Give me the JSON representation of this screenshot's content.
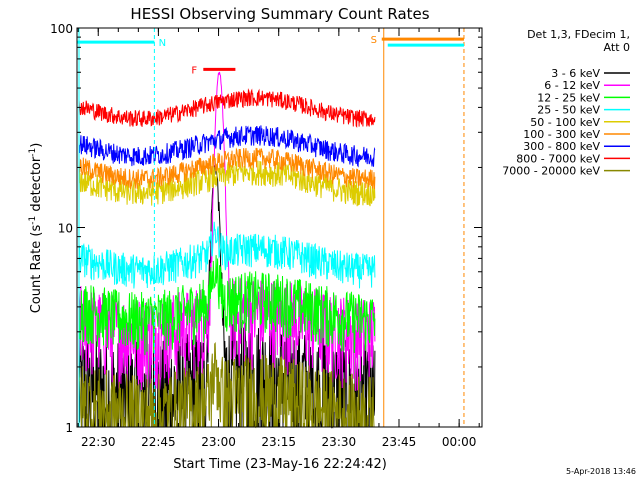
{
  "chart_data": {
    "type": "line",
    "title": "HESSI Observing Summary Count Rates",
    "xlabel": "Start Time (23-May-16 22:24:42)",
    "ylabel_main": "Count Rate (s",
    "ylabel_sup1": "-1",
    "ylabel_mid": " detector",
    "ylabel_sup2": "-1",
    "ylabel_end": ")",
    "yscale": "log",
    "ylim": [
      1,
      100
    ],
    "xlim_minutes": [
      0,
      101
    ],
    "xticks": [
      {
        "label": "22:30",
        "minutes": 5.3
      },
      {
        "label": "22:45",
        "minutes": 20.3
      },
      {
        "label": "23:00",
        "minutes": 35.3
      },
      {
        "label": "23:15",
        "minutes": 50.3
      },
      {
        "label": "23:30",
        "minutes": 65.3
      },
      {
        "label": "23:45",
        "minutes": 80.3
      },
      {
        "label": "00:00",
        "minutes": 95.3
      }
    ],
    "yticks": [
      {
        "label": "1",
        "value": 1
      },
      {
        "label": "10",
        "value": 10
      },
      {
        "label": "100",
        "value": 100
      }
    ],
    "legend": {
      "position": "right",
      "header1": "Det 1,3, FDecim 1,",
      "header2": "Att 0"
    },
    "series": [
      {
        "name": "3 - 6 keV",
        "color": "#000000",
        "level": 1.6,
        "noise": 0.9,
        "peak": 20,
        "peak_at": 34.5
      },
      {
        "name": "6 - 12 keV",
        "color": "#ff00ff",
        "level": 3.4,
        "noise": 0.5,
        "peak": 60,
        "peak_at": 35.5
      },
      {
        "name": "12 - 25 keV",
        "color": "#00ff00",
        "level": 4.0,
        "noise": 0.35,
        "peak": 6,
        "peak_at": 34.5
      },
      {
        "name": "25 - 50 keV",
        "color": "#00ffff",
        "level": 7.0,
        "noise": 0.2,
        "peak": 9,
        "peak_at": 34.5
      },
      {
        "name": "50 - 100 keV",
        "color": "#ddcc00",
        "level": 17.0,
        "noise": 0.15,
        "peak": 17,
        "peak_at": 34.5
      },
      {
        "name": "100 - 300 keV",
        "color": "#ff8800",
        "level": 20.0,
        "noise": 0.12,
        "peak": 20,
        "peak_at": 34.5
      },
      {
        "name": "300 - 800 keV",
        "color": "#0000ff",
        "level": 26.0,
        "noise": 0.12,
        "peak": 26,
        "peak_at": 34.5
      },
      {
        "name": "800 - 7000 keV",
        "color": "#ff0000",
        "level": 40.0,
        "noise": 0.1,
        "peak": 40,
        "peak_at": 34.5
      },
      {
        "name": "7000 - 20000 keV",
        "color": "#888800",
        "level": 1.3,
        "noise": 0.6,
        "peak": 1.9,
        "peak_at": 34.5
      }
    ],
    "annotations": [
      {
        "label": "N",
        "kind": "night",
        "color": "#00ffff",
        "start_min": 0,
        "end_min": 19.3,
        "level": 85
      },
      {
        "label": "F",
        "kind": "flare",
        "color": "#ff0000",
        "start_min": 31.5,
        "end_min": 39.5,
        "level": 62
      },
      {
        "label": "S",
        "kind": "saa",
        "color": "#ff8800",
        "start_min": 76,
        "end_min": 96.5,
        "level": 88
      }
    ],
    "gap_minutes": [
      74.3,
      78
    ]
  },
  "footer": {
    "timestamp": "5-Apr-2018 13:46"
  }
}
